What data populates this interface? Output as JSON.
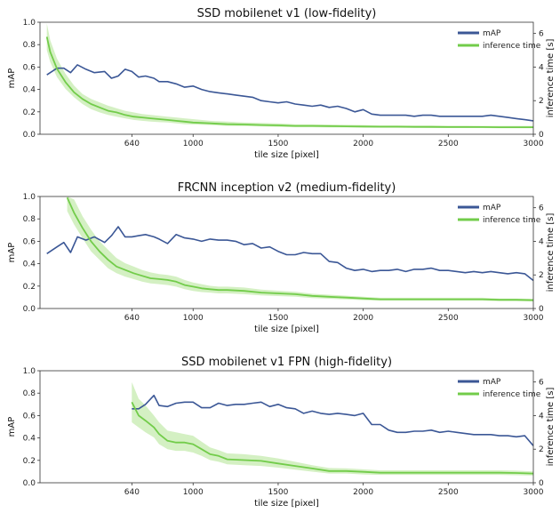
{
  "colors": {
    "map": "#3b5796",
    "inference": "#72cc4a",
    "band": "#cfeebd"
  },
  "chart_data": [
    {
      "type": "line",
      "title": "SSD mobilenet v1 (low-fidelity)",
      "xlabel": "tile size [pixel]",
      "ylabel": "mAP",
      "y2label": "inference time [s]",
      "xlim": [
        100,
        3000
      ],
      "ylim": [
        0,
        1.0
      ],
      "y2lim": [
        0,
        6.67
      ],
      "x_ticks": [
        640,
        1000,
        1500,
        2000,
        2500,
        3000
      ],
      "y_ticks": [
        "0.0",
        "0.2",
        "0.4",
        "0.6",
        "0.8",
        "1.0"
      ],
      "y2_ticks": [
        "0",
        "2",
        "4",
        "6"
      ],
      "legend": {
        "position": "top-right",
        "entries": [
          "mAP",
          "inference time"
        ]
      },
      "series": [
        {
          "name": "mAP",
          "axis": "left",
          "x": [
            140,
            200,
            240,
            280,
            320,
            370,
            420,
            480,
            520,
            560,
            600,
            640,
            680,
            720,
            770,
            800,
            850,
            900,
            950,
            1000,
            1050,
            1100,
            1150,
            1200,
            1250,
            1300,
            1350,
            1400,
            1450,
            1500,
            1550,
            1600,
            1650,
            1700,
            1750,
            1800,
            1850,
            1900,
            1950,
            2000,
            2050,
            2100,
            2150,
            2200,
            2250,
            2300,
            2350,
            2400,
            2450,
            2500,
            2550,
            2600,
            2650,
            2700,
            2750,
            2800,
            2850,
            2900,
            2950,
            3000
          ],
          "y": [
            0.53,
            0.59,
            0.59,
            0.55,
            0.62,
            0.58,
            0.55,
            0.56,
            0.5,
            0.52,
            0.58,
            0.56,
            0.51,
            0.52,
            0.5,
            0.47,
            0.47,
            0.45,
            0.42,
            0.43,
            0.4,
            0.38,
            0.37,
            0.36,
            0.35,
            0.34,
            0.33,
            0.3,
            0.29,
            0.28,
            0.29,
            0.27,
            0.26,
            0.25,
            0.26,
            0.24,
            0.25,
            0.23,
            0.2,
            0.22,
            0.18,
            0.17,
            0.17,
            0.17,
            0.17,
            0.16,
            0.17,
            0.17,
            0.16,
            0.16,
            0.16,
            0.16,
            0.16,
            0.16,
            0.17,
            0.16,
            0.15,
            0.14,
            0.13,
            0.12
          ]
        },
        {
          "name": "inference time",
          "axis": "right",
          "x": [
            140,
            160,
            200,
            250,
            300,
            350,
            400,
            450,
            500,
            550,
            600,
            650,
            700,
            750,
            800,
            850,
            900,
            950,
            1000,
            1100,
            1200,
            1300,
            1400,
            1500,
            1600,
            1700,
            1800,
            1900,
            2000,
            2100,
            2200,
            2300,
            2400,
            2500,
            2600,
            2700,
            2800,
            2900,
            3000
          ],
          "y": [
            5.8,
            4.9,
            3.9,
            3.1,
            2.5,
            2.1,
            1.8,
            1.6,
            1.4,
            1.3,
            1.15,
            1.05,
            1.0,
            0.95,
            0.9,
            0.85,
            0.8,
            0.75,
            0.7,
            0.65,
            0.6,
            0.58,
            0.55,
            0.53,
            0.5,
            0.5,
            0.48,
            0.47,
            0.46,
            0.45,
            0.45,
            0.44,
            0.44,
            0.43,
            0.43,
            0.43,
            0.42,
            0.42,
            0.42
          ],
          "y_low": [
            5.0,
            4.3,
            3.4,
            2.7,
            2.2,
            1.8,
            1.5,
            1.3,
            1.15,
            1.05,
            0.95,
            0.85,
            0.8,
            0.75,
            0.72,
            0.7,
            0.65,
            0.6,
            0.58,
            0.55,
            0.5,
            0.48,
            0.46,
            0.44,
            0.42,
            0.42,
            0.4,
            0.4,
            0.39,
            0.38,
            0.38,
            0.38,
            0.37,
            0.37,
            0.37,
            0.37,
            0.36,
            0.36,
            0.36
          ],
          "y_high": [
            6.6,
            5.6,
            4.5,
            3.6,
            2.9,
            2.4,
            2.1,
            1.9,
            1.7,
            1.55,
            1.4,
            1.3,
            1.2,
            1.15,
            1.1,
            1.05,
            1.0,
            0.95,
            0.9,
            0.8,
            0.75,
            0.7,
            0.68,
            0.65,
            0.6,
            0.6,
            0.58,
            0.56,
            0.55,
            0.53,
            0.53,
            0.52,
            0.52,
            0.51,
            0.51,
            0.5,
            0.5,
            0.5,
            0.5
          ]
        }
      ]
    },
    {
      "type": "line",
      "title": "FRCNN inception v2 (medium-fidelity)",
      "xlabel": "tile size [pixel]",
      "ylabel": "mAP",
      "y2label": "inference time [s]",
      "xlim": [
        100,
        3000
      ],
      "ylim": [
        0,
        1.0
      ],
      "y2lim": [
        0,
        6.67
      ],
      "x_ticks": [
        640,
        1000,
        1500,
        2000,
        2500,
        3000
      ],
      "y_ticks": [
        "0.0",
        "0.2",
        "0.4",
        "0.6",
        "0.8",
        "1.0"
      ],
      "y2_ticks": [
        "0",
        "2",
        "4",
        "6"
      ],
      "legend": {
        "position": "top-right",
        "entries": [
          "mAP",
          "inference time"
        ]
      },
      "series": [
        {
          "name": "mAP",
          "axis": "left",
          "x": [
            140,
            200,
            240,
            280,
            320,
            370,
            420,
            480,
            520,
            560,
            600,
            640,
            680,
            720,
            770,
            800,
            850,
            900,
            950,
            1000,
            1050,
            1100,
            1150,
            1200,
            1250,
            1300,
            1350,
            1400,
            1450,
            1500,
            1550,
            1600,
            1650,
            1700,
            1750,
            1800,
            1850,
            1900,
            1950,
            2000,
            2050,
            2100,
            2150,
            2200,
            2250,
            2300,
            2350,
            2400,
            2450,
            2500,
            2550,
            2600,
            2650,
            2700,
            2750,
            2800,
            2850,
            2900,
            2950,
            3000
          ],
          "y": [
            0.49,
            0.55,
            0.59,
            0.5,
            0.64,
            0.61,
            0.64,
            0.59,
            0.65,
            0.73,
            0.64,
            0.64,
            0.65,
            0.66,
            0.64,
            0.62,
            0.58,
            0.66,
            0.63,
            0.62,
            0.6,
            0.62,
            0.61,
            0.61,
            0.6,
            0.57,
            0.58,
            0.54,
            0.55,
            0.51,
            0.48,
            0.48,
            0.5,
            0.49,
            0.49,
            0.42,
            0.41,
            0.36,
            0.34,
            0.35,
            0.33,
            0.34,
            0.34,
            0.35,
            0.33,
            0.35,
            0.35,
            0.36,
            0.34,
            0.34,
            0.33,
            0.32,
            0.33,
            0.32,
            0.33,
            0.32,
            0.31,
            0.32,
            0.31,
            0.25
          ]
        },
        {
          "name": "inference time",
          "axis": "right",
          "x": [
            260,
            300,
            350,
            400,
            450,
            500,
            550,
            600,
            650,
            700,
            750,
            800,
            850,
            900,
            950,
            1000,
            1050,
            1100,
            1150,
            1200,
            1300,
            1400,
            1500,
            1600,
            1700,
            1800,
            1900,
            2000,
            2100,
            2200,
            2300,
            2400,
            2500,
            2600,
            2700,
            2800,
            2900,
            3000
          ],
          "y": [
            6.6,
            5.7,
            4.8,
            4.0,
            3.4,
            2.9,
            2.5,
            2.3,
            2.1,
            1.95,
            1.8,
            1.75,
            1.7,
            1.6,
            1.4,
            1.3,
            1.2,
            1.15,
            1.1,
            1.1,
            1.05,
            0.95,
            0.9,
            0.85,
            0.75,
            0.7,
            0.65,
            0.6,
            0.55,
            0.55,
            0.55,
            0.55,
            0.55,
            0.55,
            0.55,
            0.52,
            0.52,
            0.5
          ],
          "y_low": [
            5.8,
            5.0,
            4.2,
            3.4,
            2.9,
            2.4,
            2.1,
            1.9,
            1.75,
            1.6,
            1.5,
            1.45,
            1.4,
            1.3,
            1.15,
            1.05,
            0.98,
            0.95,
            0.9,
            0.9,
            0.85,
            0.78,
            0.74,
            0.7,
            0.62,
            0.58,
            0.54,
            0.5,
            0.46,
            0.46,
            0.46,
            0.46,
            0.46,
            0.46,
            0.46,
            0.44,
            0.44,
            0.42
          ],
          "y_high": [
            6.67,
            6.5,
            5.5,
            4.7,
            4.0,
            3.5,
            3.0,
            2.7,
            2.5,
            2.3,
            2.15,
            2.05,
            2.0,
            1.9,
            1.7,
            1.55,
            1.45,
            1.35,
            1.3,
            1.3,
            1.25,
            1.12,
            1.06,
            1.0,
            0.88,
            0.82,
            0.76,
            0.7,
            0.64,
            0.64,
            0.64,
            0.64,
            0.64,
            0.64,
            0.64,
            0.6,
            0.6,
            0.58
          ]
        }
      ]
    },
    {
      "type": "line",
      "title": "SSD mobilenet v1 FPN (high-fidelity)",
      "xlabel": "tile size [pixel]",
      "ylabel": "mAP",
      "y2label": "inference time [s]",
      "xlim": [
        100,
        3000
      ],
      "ylim": [
        0,
        1.0
      ],
      "y2lim": [
        0,
        6.67
      ],
      "x_ticks": [
        640,
        1000,
        1500,
        2000,
        2500,
        3000
      ],
      "y_ticks": [
        "0.0",
        "0.2",
        "0.4",
        "0.6",
        "0.8",
        "1.0"
      ],
      "y2_ticks": [
        "0",
        "2",
        "4",
        "6"
      ],
      "legend": {
        "position": "top-right",
        "entries": [
          "mAP",
          "inference time"
        ]
      },
      "series": [
        {
          "name": "mAP",
          "axis": "left",
          "x": [
            640,
            680,
            720,
            770,
            800,
            850,
            900,
            950,
            1000,
            1050,
            1100,
            1150,
            1200,
            1250,
            1300,
            1350,
            1400,
            1450,
            1500,
            1550,
            1600,
            1650,
            1700,
            1750,
            1800,
            1850,
            1900,
            1950,
            2000,
            2050,
            2100,
            2150,
            2200,
            2250,
            2300,
            2350,
            2400,
            2450,
            2500,
            2550,
            2600,
            2650,
            2700,
            2750,
            2800,
            2850,
            2900,
            2950,
            3000
          ],
          "y": [
            0.66,
            0.66,
            0.7,
            0.78,
            0.69,
            0.68,
            0.71,
            0.72,
            0.72,
            0.67,
            0.67,
            0.71,
            0.69,
            0.7,
            0.7,
            0.71,
            0.72,
            0.68,
            0.7,
            0.67,
            0.66,
            0.62,
            0.64,
            0.62,
            0.61,
            0.62,
            0.61,
            0.6,
            0.62,
            0.52,
            0.52,
            0.47,
            0.45,
            0.45,
            0.46,
            0.46,
            0.47,
            0.45,
            0.46,
            0.45,
            0.44,
            0.43,
            0.43,
            0.43,
            0.42,
            0.42,
            0.41,
            0.42,
            0.33
          ]
        },
        {
          "name": "inference time",
          "axis": "right",
          "x": [
            640,
            680,
            720,
            770,
            800,
            850,
            900,
            950,
            1000,
            1050,
            1100,
            1150,
            1200,
            1300,
            1400,
            1500,
            1600,
            1700,
            1800,
            1900,
            2000,
            2100,
            2200,
            2300,
            2400,
            2500,
            2600,
            2700,
            2800,
            2900,
            3000
          ],
          "y": [
            4.8,
            4.0,
            3.7,
            3.3,
            2.9,
            2.5,
            2.4,
            2.4,
            2.3,
            2.0,
            1.7,
            1.6,
            1.4,
            1.35,
            1.3,
            1.15,
            1.0,
            0.85,
            0.7,
            0.7,
            0.65,
            0.6,
            0.6,
            0.6,
            0.6,
            0.6,
            0.6,
            0.6,
            0.6,
            0.58,
            0.55
          ],
          "y_low": [
            3.6,
            3.3,
            3.0,
            2.7,
            2.3,
            2.0,
            1.9,
            1.9,
            1.8,
            1.6,
            1.35,
            1.25,
            1.1,
            1.05,
            1.0,
            0.9,
            0.78,
            0.66,
            0.55,
            0.55,
            0.5,
            0.47,
            0.47,
            0.47,
            0.47,
            0.47,
            0.47,
            0.47,
            0.47,
            0.45,
            0.43
          ],
          "y_high": [
            6.0,
            5.0,
            4.6,
            4.0,
            3.6,
            3.1,
            3.0,
            2.9,
            2.8,
            2.45,
            2.1,
            1.95,
            1.75,
            1.7,
            1.6,
            1.45,
            1.25,
            1.05,
            0.88,
            0.86,
            0.8,
            0.74,
            0.74,
            0.74,
            0.74,
            0.74,
            0.74,
            0.74,
            0.74,
            0.72,
            0.68
          ]
        }
      ]
    }
  ]
}
